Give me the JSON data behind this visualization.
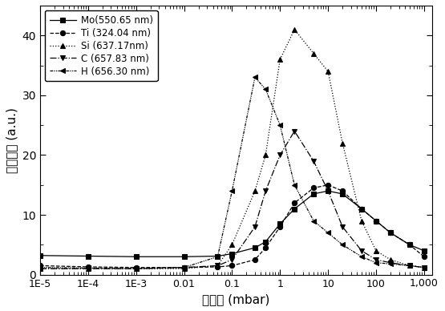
{
  "title": "",
  "xlabel": "气压值（mbar）",
  "ylabel": "信号强度（a.u.）",
  "ylim": [
    0,
    45
  ],
  "yticks": [
    0,
    10,
    20,
    30,
    40
  ],
  "series": [
    {
      "label": "Mo(550.65 nm)",
      "linestyle": "solid",
      "marker": "s",
      "x": [
        1e-05,
        0.0001,
        0.001,
        0.01,
        0.05,
        0.1,
        0.3,
        0.5,
        1,
        2,
        5,
        10,
        20,
        50,
        100,
        200,
        500,
        1000
      ],
      "y": [
        3.2,
        3.1,
        3.0,
        3.0,
        3.1,
        3.5,
        4.5,
        5.5,
        8.5,
        11,
        13.5,
        14,
        13.5,
        11,
        9,
        7,
        5,
        4
      ]
    },
    {
      "label": "Ti (324.04 nm)",
      "linestyle": "dashed",
      "marker": "o",
      "x": [
        1e-05,
        0.0001,
        0.001,
        0.01,
        0.05,
        0.1,
        0.3,
        0.5,
        1,
        2,
        5,
        10,
        20,
        50,
        100,
        200,
        500,
        1000
      ],
      "y": [
        1.5,
        1.3,
        1.2,
        1.2,
        1.3,
        1.5,
        2.5,
        4.5,
        8,
        12,
        14.5,
        15,
        14,
        11,
        9,
        7,
        5,
        3
      ]
    },
    {
      "label": "Si (637.17nm)",
      "linestyle": "dotted",
      "marker": "^",
      "x": [
        1e-05,
        0.0001,
        0.001,
        0.01,
        0.05,
        0.1,
        0.3,
        0.5,
        1,
        2,
        5,
        10,
        20,
        50,
        100,
        200,
        500,
        1000
      ],
      "y": [
        1.0,
        1.0,
        1.0,
        1.0,
        1.5,
        5,
        14,
        20,
        36,
        41,
        37,
        34,
        22,
        9,
        4,
        2.5,
        1.5,
        1.2
      ]
    },
    {
      "label": "C (657.83 nm)",
      "linestyle": "dashdot",
      "marker": "v",
      "x": [
        1e-05,
        0.0001,
        0.001,
        0.01,
        0.05,
        0.1,
        0.3,
        0.5,
        1,
        2,
        5,
        10,
        20,
        50,
        100,
        200,
        500,
        1000
      ],
      "y": [
        1.0,
        1.0,
        1.0,
        1.2,
        1.5,
        2.5,
        8,
        14,
        20,
        24,
        19,
        14,
        8,
        4,
        2.5,
        2,
        1.5,
        1.2
      ]
    },
    {
      "label": "H (656.30 nm)",
      "linestyle": "dashdotdot",
      "marker": "<",
      "x": [
        1e-05,
        0.0001,
        0.001,
        0.01,
        0.05,
        0.1,
        0.3,
        0.5,
        1,
        2,
        5,
        10,
        20,
        50,
        100,
        200,
        500,
        1000
      ],
      "y": [
        1.2,
        1.1,
        1.0,
        1.2,
        3,
        14,
        33,
        31,
        25,
        15,
        9,
        7,
        5,
        3,
        2,
        1.8,
        1.5,
        1.2
      ]
    }
  ],
  "xtick_labels": [
    "1E-5",
    "1E-4",
    "1E-3",
    "0.01",
    "0.1",
    "1",
    "10",
    "100",
    "1,000"
  ],
  "xtick_vals": [
    1e-05,
    0.0001,
    0.001,
    0.01,
    0.1,
    1,
    10,
    100,
    1000
  ],
  "background_color": "#ffffff",
  "font_size": 10
}
